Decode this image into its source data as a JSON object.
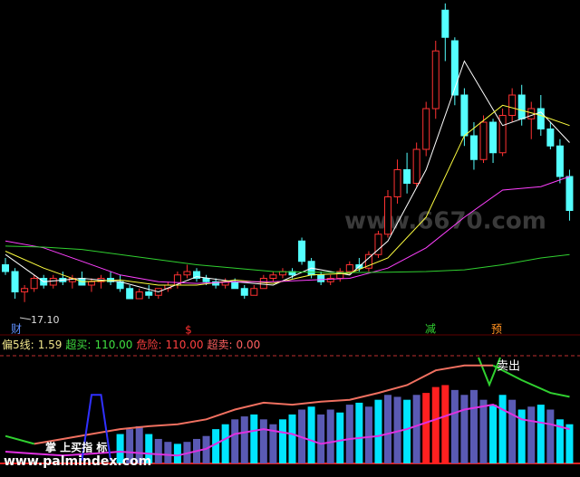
{
  "chart_data": [
    {
      "type": "candlestick",
      "ylim": [
        16.4,
        26.0
      ],
      "up_color": "#ff3232",
      "down_color": "#54ffff",
      "open": [
        18.2,
        18.0,
        17.4,
        17.5,
        17.8,
        17.6,
        17.8,
        17.7,
        17.8,
        17.6,
        17.7,
        17.8,
        17.7,
        17.5,
        17.2,
        17.4,
        17.3,
        17.5,
        17.6,
        17.9,
        18.0,
        17.8,
        17.7,
        17.6,
        17.7,
        17.5,
        17.3,
        17.5,
        17.8,
        17.9,
        18.0,
        18.9,
        18.3,
        17.9,
        17.7,
        17.8,
        18.0,
        18.2,
        18.1,
        18.5,
        19.1,
        20.2,
        21.0,
        20.6,
        21.6,
        22.8,
        25.7,
        24.8,
        23.2,
        22.0,
        21.3,
        22.4,
        21.5,
        22.6,
        23.2,
        22.5,
        22.8,
        22.2,
        21.7,
        20.8
      ],
      "high": [
        18.4,
        18.1,
        17.6,
        17.9,
        17.9,
        17.9,
        18.0,
        17.9,
        18.0,
        17.8,
        17.9,
        18.0,
        17.9,
        17.6,
        17.5,
        17.6,
        17.5,
        17.7,
        18.0,
        18.2,
        18.1,
        17.9,
        17.8,
        17.8,
        17.8,
        17.6,
        17.6,
        17.9,
        18.0,
        18.1,
        18.1,
        19.0,
        18.4,
        18.0,
        17.9,
        18.1,
        18.3,
        18.4,
        18.6,
        19.2,
        20.4,
        21.3,
        21.5,
        21.8,
        23.0,
        24.8,
        25.9,
        24.9,
        23.4,
        22.4,
        22.6,
        22.5,
        22.8,
        23.4,
        23.5,
        23.0,
        23.2,
        22.4,
        21.9,
        21.0
      ],
      "low": [
        17.9,
        17.2,
        17.1,
        17.4,
        17.5,
        17.5,
        17.6,
        17.5,
        17.6,
        17.4,
        17.5,
        17.6,
        17.4,
        17.2,
        17.2,
        17.2,
        17.2,
        17.4,
        17.5,
        17.8,
        17.7,
        17.6,
        17.5,
        17.5,
        17.5,
        17.2,
        17.3,
        17.5,
        17.7,
        17.8,
        17.8,
        18.2,
        17.8,
        17.6,
        17.6,
        17.7,
        17.9,
        18.0,
        18.0,
        18.4,
        19.0,
        20.0,
        20.3,
        20.5,
        21.4,
        22.5,
        24.2,
        22.9,
        21.7,
        21.0,
        21.2,
        21.2,
        21.4,
        22.4,
        22.3,
        21.9,
        22.0,
        21.6,
        20.6,
        19.5
      ],
      "close": [
        18.0,
        17.4,
        17.5,
        17.8,
        17.6,
        17.8,
        17.7,
        17.8,
        17.6,
        17.7,
        17.8,
        17.7,
        17.5,
        17.2,
        17.4,
        17.3,
        17.5,
        17.6,
        17.9,
        18.0,
        17.8,
        17.7,
        17.6,
        17.7,
        17.5,
        17.3,
        17.5,
        17.8,
        17.9,
        18.0,
        17.9,
        18.3,
        17.9,
        17.7,
        17.8,
        18.0,
        18.2,
        18.1,
        18.5,
        19.1,
        20.2,
        21.0,
        20.6,
        21.6,
        22.8,
        24.5,
        24.9,
        23.2,
        22.0,
        21.3,
        22.4,
        21.5,
        22.6,
        23.2,
        22.5,
        22.8,
        22.2,
        21.7,
        20.8,
        19.8
      ],
      "lines": [
        {
          "color": "#ffffff",
          "x": [
            0,
            4,
            8,
            12,
            16,
            20,
            24,
            28,
            32,
            36,
            40,
            44,
            48,
            52,
            56,
            59
          ],
          "values": [
            18.5,
            17.7,
            17.8,
            17.7,
            17.4,
            17.85,
            17.7,
            17.6,
            18.1,
            17.9,
            18.9,
            21.0,
            24.2,
            22.3,
            22.7,
            21.8
          ]
        },
        {
          "color": "#ffff40",
          "x": [
            0,
            4,
            8,
            12,
            16,
            20,
            24,
            28,
            32,
            36,
            40,
            44,
            48,
            52,
            56,
            59
          ],
          "values": [
            18.6,
            18.1,
            17.7,
            17.75,
            17.6,
            17.6,
            17.75,
            17.65,
            17.9,
            17.95,
            18.4,
            19.6,
            22.0,
            22.9,
            22.6,
            22.3
          ]
        },
        {
          "color": "#ff40ff",
          "x": [
            0,
            4,
            8,
            12,
            16,
            20,
            24,
            28,
            32,
            36,
            40,
            44,
            48,
            52,
            56,
            59
          ],
          "values": [
            18.9,
            18.7,
            18.3,
            17.9,
            17.7,
            17.65,
            17.7,
            17.7,
            17.75,
            17.8,
            18.1,
            18.7,
            19.6,
            20.4,
            20.5,
            20.8
          ]
        },
        {
          "color": "#30d030",
          "x": [
            0,
            4,
            8,
            12,
            16,
            20,
            24,
            28,
            32,
            36,
            40,
            44,
            48,
            52,
            56,
            59
          ],
          "values": [
            18.75,
            18.72,
            18.65,
            18.5,
            18.35,
            18.2,
            18.1,
            18.0,
            17.98,
            17.97,
            17.98,
            18.0,
            18.05,
            18.2,
            18.4,
            18.5
          ]
        }
      ],
      "low_label": "17.10",
      "annotations": [
        {
          "text": "财",
          "color": "#6090ff"
        },
        {
          "text": "$",
          "color": "#ff3030"
        },
        {
          "text": "减",
          "color": "#30d030"
        },
        {
          "text": "预",
          "color": "#ff9020"
        }
      ],
      "watermark": "www.6670.com"
    },
    {
      "type": "bar",
      "ylim": [
        0,
        110
      ],
      "legend": [
        {
          "label": "偏5线:",
          "text": "1.59",
          "color": "#f0e68c"
        },
        {
          "label": "超买:",
          "text": "110.00",
          "color": "#40e040"
        },
        {
          "label": "危险:",
          "text": "110.00",
          "color": "#ff4040"
        },
        {
          "label": "超卖:",
          "text": "0.00",
          "color": "#ff6060"
        }
      ],
      "values": [
        null,
        null,
        null,
        null,
        null,
        null,
        null,
        null,
        null,
        null,
        null,
        null,
        30,
        35,
        38,
        30,
        25,
        22,
        20,
        22,
        25,
        28,
        35,
        40,
        45,
        48,
        50,
        45,
        40,
        45,
        50,
        55,
        58,
        50,
        55,
        52,
        60,
        62,
        58,
        65,
        70,
        68,
        65,
        70,
        72,
        78,
        80,
        75,
        70,
        75,
        65,
        60,
        70,
        65,
        55,
        58,
        60,
        55,
        45,
        40
      ],
      "colors": [
        null,
        null,
        null,
        null,
        null,
        null,
        null,
        null,
        null,
        null,
        null,
        null,
        "#00e5ff",
        "#5a5ab4",
        "#5a5ab4",
        "#00e5ff",
        "#5a5ab4",
        "#5a5ab4",
        "#00e5ff",
        "#5a5ab4",
        "#5a5ab4",
        "#5a5ab4",
        "#00e5ff",
        "#00e5ff",
        "#5a5ab4",
        "#5a5ab4",
        "#00e5ff",
        "#5a5ab4",
        "#5a5ab4",
        "#00e5ff",
        "#00e5ff",
        "#5a5ab4",
        "#00e5ff",
        "#5a5ab4",
        "#5a5ab4",
        "#00e5ff",
        "#5a5ab4",
        "#00e5ff",
        "#5a5ab4",
        "#00e5ff",
        "#5a5ab4",
        "#5a5ab4",
        "#00e5ff",
        "#5a5ab4",
        "#ff2020",
        "#ff2020",
        "#ff2020",
        "#5a5ab4",
        "#5a5ab4",
        "#5a5ab4",
        "#5a5ab4",
        "#00e5ff",
        "#00e5ff",
        "#5a5ab4",
        "#00e5ff",
        "#5a5ab4",
        "#00e5ff",
        "#5a5ab4",
        "#00e5ff",
        "#00e5ff"
      ],
      "lines": [
        {
          "color": "#f07060",
          "x": [
            0,
            3,
            6,
            9,
            12,
            15,
            18,
            21,
            24,
            27,
            30,
            33,
            36,
            39,
            42,
            45,
            48,
            51,
            54,
            57,
            59
          ],
          "values": [
            null,
            20,
            25,
            30,
            35,
            38,
            40,
            45,
            55,
            62,
            60,
            63,
            65,
            72,
            80,
            95,
            100,
            100,
            null,
            null,
            null
          ]
        },
        {
          "color": "#30d030",
          "x": [
            0,
            3,
            6,
            9,
            12,
            15,
            18,
            21,
            24,
            27,
            30,
            33,
            36,
            39,
            42,
            45,
            48,
            51,
            54,
            57,
            59
          ],
          "values": [
            28,
            20,
            null,
            null,
            null,
            null,
            null,
            null,
            null,
            null,
            null,
            null,
            null,
            null,
            null,
            null,
            null,
            100,
            85,
            72,
            68
          ]
        },
        {
          "color": "#e030e0",
          "x": [
            0,
            3,
            6,
            9,
            12,
            15,
            18,
            21,
            24,
            27,
            30,
            33,
            36,
            39,
            42,
            45,
            48,
            51,
            54,
            57,
            59
          ],
          "values": [
            12,
            10,
            8,
            10,
            12,
            10,
            8,
            15,
            30,
            35,
            30,
            20,
            25,
            28,
            35,
            45,
            55,
            60,
            45,
            40,
            35
          ]
        },
        {
          "color": "#3030ff",
          "x": [
            8,
            9,
            10,
            11
          ],
          "values": [
            3,
            70,
            70,
            3
          ]
        }
      ],
      "signal": "卖出",
      "caption": "掌 上买指 标",
      "watermark": "www.palmindex.com"
    }
  ]
}
